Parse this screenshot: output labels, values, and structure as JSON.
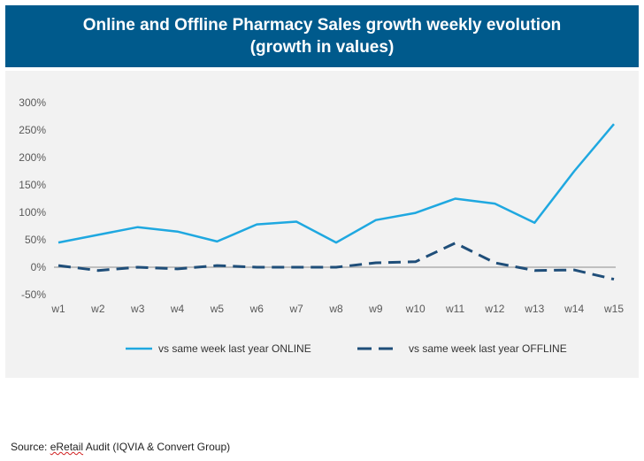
{
  "header": {
    "title_line1": "Online and Offline Pharmacy Sales growth weekly evolution",
    "title_line2": "(growth in values)"
  },
  "chart_data": {
    "type": "line",
    "title": "Online and Offline Pharmacy Sales growth weekly evolution (growth in values)",
    "categories": [
      "w1",
      "w2",
      "w3",
      "w4",
      "w5",
      "w6",
      "w7",
      "w8",
      "w9",
      "w10",
      "w11",
      "w12",
      "w13",
      "w14",
      "w15"
    ],
    "y_ticks": [
      "300%",
      "250%",
      "200%",
      "150%",
      "100%",
      "50%",
      "0%",
      "-50%"
    ],
    "ylim": [
      -50,
      300
    ],
    "grid": false,
    "legend_position": "bottom",
    "series": [
      {
        "name": "vs same week last year ONLINE",
        "color": "#1fa8e0",
        "style": "solid",
        "values": [
          45,
          59,
          73,
          65,
          47,
          78,
          83,
          45,
          86,
          99,
          125,
          116,
          81,
          175,
          261
        ]
      },
      {
        "name": "vs same week last year OFFLINE",
        "color": "#1f4e79",
        "style": "dashed",
        "values": [
          3,
          -6,
          0,
          -3,
          3,
          0,
          0,
          0,
          8,
          10,
          44,
          8,
          -6,
          -5,
          -22
        ]
      }
    ]
  },
  "source": {
    "prefix": "Source: ",
    "word": "eRetail",
    "suffix": " Audit (IQVIA & Convert Group)"
  }
}
